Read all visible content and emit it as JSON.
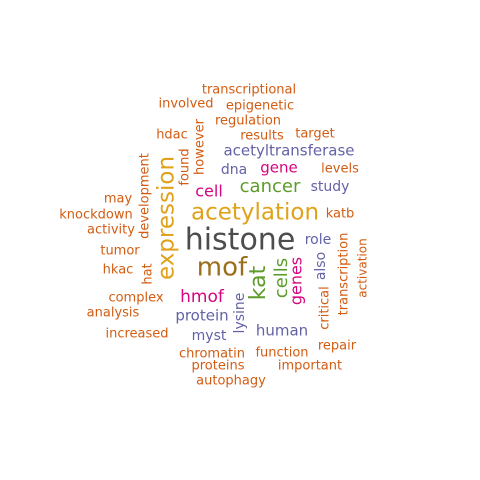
{
  "palette": {
    "dark_gray": "#4d4d4d",
    "olive_brown": "#9b6e1c",
    "gold": "#e0a21a",
    "green": "#5d9c2a",
    "magenta": "#d6047f",
    "slate_purple": "#6462a6",
    "orange": "#d35c12"
  },
  "words": [
    {
      "text": "histone",
      "color": "dark_gray"
    },
    {
      "text": "mof",
      "color": "olive_brown"
    },
    {
      "text": "acetylation",
      "color": "gold"
    },
    {
      "text": "expression",
      "color": "gold"
    },
    {
      "text": "kat",
      "color": "green"
    },
    {
      "text": "cells",
      "color": "green"
    },
    {
      "text": "cancer",
      "color": "green"
    },
    {
      "text": "hmof",
      "color": "magenta"
    },
    {
      "text": "genes",
      "color": "magenta"
    },
    {
      "text": "cell",
      "color": "magenta"
    },
    {
      "text": "gene",
      "color": "magenta"
    },
    {
      "text": "acetyltransferase",
      "color": "slate_purple"
    },
    {
      "text": "dna",
      "color": "slate_purple"
    },
    {
      "text": "study",
      "color": "slate_purple"
    },
    {
      "text": "role",
      "color": "slate_purple"
    },
    {
      "text": "also",
      "color": "slate_purple"
    },
    {
      "text": "protein",
      "color": "slate_purple"
    },
    {
      "text": "lysine",
      "color": "slate_purple"
    },
    {
      "text": "human",
      "color": "slate_purple"
    },
    {
      "text": "myst",
      "color": "slate_purple"
    },
    {
      "text": "transcriptional",
      "color": "orange"
    },
    {
      "text": "involved",
      "color": "orange"
    },
    {
      "text": "epigenetic",
      "color": "orange"
    },
    {
      "text": "regulation",
      "color": "orange"
    },
    {
      "text": "hdac",
      "color": "orange"
    },
    {
      "text": "however",
      "color": "orange"
    },
    {
      "text": "results",
      "color": "orange"
    },
    {
      "text": "target",
      "color": "orange"
    },
    {
      "text": "development",
      "color": "orange"
    },
    {
      "text": "found",
      "color": "orange"
    },
    {
      "text": "levels",
      "color": "orange"
    },
    {
      "text": "may",
      "color": "orange"
    },
    {
      "text": "knockdown",
      "color": "orange"
    },
    {
      "text": "activity",
      "color": "orange"
    },
    {
      "text": "katb",
      "color": "orange"
    },
    {
      "text": "tumor",
      "color": "orange"
    },
    {
      "text": "activation",
      "color": "orange"
    },
    {
      "text": "hkac",
      "color": "orange"
    },
    {
      "text": "hat",
      "color": "orange"
    },
    {
      "text": "transcription",
      "color": "orange"
    },
    {
      "text": "complex",
      "color": "orange"
    },
    {
      "text": "analysis",
      "color": "orange"
    },
    {
      "text": "critical",
      "color": "orange"
    },
    {
      "text": "increased",
      "color": "orange"
    },
    {
      "text": "repair",
      "color": "orange"
    },
    {
      "text": "chromatin",
      "color": "orange"
    },
    {
      "text": "function",
      "color": "orange"
    },
    {
      "text": "proteins",
      "color": "orange"
    },
    {
      "text": "important",
      "color": "orange"
    },
    {
      "text": "autophagy",
      "color": "orange"
    }
  ]
}
